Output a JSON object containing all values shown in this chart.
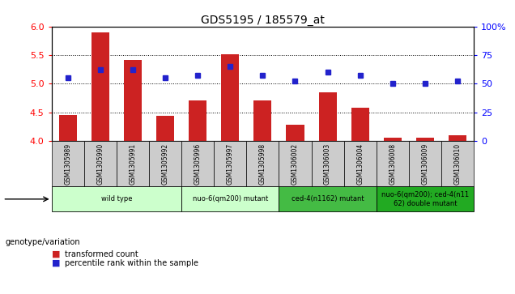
{
  "title": "GDS5195 / 185579_at",
  "samples": [
    "GSM1305989",
    "GSM1305990",
    "GSM1305991",
    "GSM1305992",
    "GSM1305996",
    "GSM1305997",
    "GSM1305998",
    "GSM1306002",
    "GSM1306003",
    "GSM1306004",
    "GSM1306008",
    "GSM1306009",
    "GSM1306010"
  ],
  "bar_values": [
    4.45,
    5.9,
    5.42,
    4.43,
    4.7,
    5.52,
    4.7,
    4.28,
    4.85,
    4.58,
    4.05,
    4.05,
    4.1
  ],
  "dot_values": [
    55,
    62,
    62,
    55,
    57,
    65,
    57,
    52,
    60,
    57,
    50,
    50,
    52
  ],
  "ylim": [
    4.0,
    6.0
  ],
  "y2lim": [
    0,
    100
  ],
  "yticks": [
    4.0,
    4.5,
    5.0,
    5.5,
    6.0
  ],
  "y2ticks": [
    0,
    25,
    50,
    75,
    100
  ],
  "bar_color": "#cc2222",
  "dot_color": "#2222cc",
  "gray_box_color": "#cccccc",
  "groups": [
    {
      "label": "wild type",
      "start": 0,
      "end": 3,
      "color": "#ccffcc"
    },
    {
      "label": "nuo-6(qm200) mutant",
      "start": 4,
      "end": 6,
      "color": "#ccffcc"
    },
    {
      "label": "ced-4(n1162) mutant",
      "start": 7,
      "end": 9,
      "color": "#44bb44"
    },
    {
      "label": "nuo-6(qm200); ced-4(n11\n62) double mutant",
      "start": 10,
      "end": 12,
      "color": "#22aa22"
    }
  ],
  "legend_items": [
    {
      "label": "transformed count",
      "color": "#cc2222"
    },
    {
      "label": "percentile rank within the sample",
      "color": "#2222cc"
    }
  ],
  "genotype_label": "genotype/variation"
}
